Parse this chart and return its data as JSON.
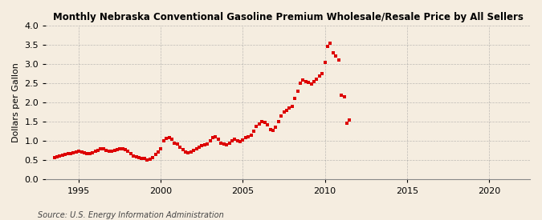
{
  "title": "Monthly Nebraska Conventional Gasoline Premium Wholesale/Resale Price by All Sellers",
  "ylabel": "Dollars per Gallon",
  "source": "Source: U.S. Energy Information Administration",
  "xlim": [
    1993.0,
    2022.5
  ],
  "ylim": [
    0.0,
    4.0
  ],
  "xticks": [
    1995,
    2000,
    2005,
    2010,
    2015,
    2020
  ],
  "yticks": [
    0.0,
    0.5,
    1.0,
    1.5,
    2.0,
    2.5,
    3.0,
    3.5,
    4.0
  ],
  "bg_color": "#f5ede0",
  "grid_color": "#999999",
  "dot_color": "#dd0000",
  "data": [
    [
      1993.5,
      0.58
    ],
    [
      1993.67,
      0.6
    ],
    [
      1993.83,
      0.62
    ],
    [
      1994.0,
      0.63
    ],
    [
      1994.17,
      0.65
    ],
    [
      1994.33,
      0.67
    ],
    [
      1994.5,
      0.68
    ],
    [
      1994.67,
      0.7
    ],
    [
      1994.83,
      0.71
    ],
    [
      1995.0,
      0.73
    ],
    [
      1995.17,
      0.72
    ],
    [
      1995.33,
      0.7
    ],
    [
      1995.5,
      0.68
    ],
    [
      1995.67,
      0.67
    ],
    [
      1995.83,
      0.7
    ],
    [
      1996.0,
      0.73
    ],
    [
      1996.17,
      0.76
    ],
    [
      1996.33,
      0.79
    ],
    [
      1996.5,
      0.8
    ],
    [
      1996.67,
      0.76
    ],
    [
      1996.83,
      0.73
    ],
    [
      1997.0,
      0.73
    ],
    [
      1997.17,
      0.75
    ],
    [
      1997.33,
      0.78
    ],
    [
      1997.5,
      0.8
    ],
    [
      1997.67,
      0.79
    ],
    [
      1997.83,
      0.77
    ],
    [
      1998.0,
      0.73
    ],
    [
      1998.17,
      0.67
    ],
    [
      1998.33,
      0.62
    ],
    [
      1998.5,
      0.6
    ],
    [
      1998.67,
      0.58
    ],
    [
      1998.83,
      0.56
    ],
    [
      1999.0,
      0.54
    ],
    [
      1999.17,
      0.5
    ],
    [
      1999.33,
      0.53
    ],
    [
      1999.5,
      0.58
    ],
    [
      1999.67,
      0.65
    ],
    [
      1999.83,
      0.72
    ],
    [
      2000.0,
      0.8
    ],
    [
      2000.17,
      1.0
    ],
    [
      2000.33,
      1.06
    ],
    [
      2000.5,
      1.08
    ],
    [
      2000.67,
      1.05
    ],
    [
      2000.83,
      0.95
    ],
    [
      2001.0,
      0.92
    ],
    [
      2001.17,
      0.85
    ],
    [
      2001.33,
      0.78
    ],
    [
      2001.5,
      0.72
    ],
    [
      2001.67,
      0.7
    ],
    [
      2001.83,
      0.72
    ],
    [
      2002.0,
      0.75
    ],
    [
      2002.17,
      0.8
    ],
    [
      2002.33,
      0.85
    ],
    [
      2002.5,
      0.88
    ],
    [
      2002.67,
      0.9
    ],
    [
      2002.83,
      0.92
    ],
    [
      2003.0,
      1.0
    ],
    [
      2003.17,
      1.08
    ],
    [
      2003.33,
      1.12
    ],
    [
      2003.5,
      1.05
    ],
    [
      2003.67,
      0.95
    ],
    [
      2003.83,
      0.92
    ],
    [
      2004.0,
      0.9
    ],
    [
      2004.17,
      0.95
    ],
    [
      2004.33,
      1.0
    ],
    [
      2004.5,
      1.05
    ],
    [
      2004.67,
      1.0
    ],
    [
      2004.83,
      0.98
    ],
    [
      2005.0,
      1.02
    ],
    [
      2005.17,
      1.08
    ],
    [
      2005.33,
      1.12
    ],
    [
      2005.5,
      1.15
    ],
    [
      2005.67,
      1.25
    ],
    [
      2005.83,
      1.38
    ],
    [
      2006.0,
      1.45
    ],
    [
      2006.17,
      1.5
    ],
    [
      2006.33,
      1.48
    ],
    [
      2006.5,
      1.42
    ],
    [
      2006.67,
      1.3
    ],
    [
      2006.83,
      1.28
    ],
    [
      2007.0,
      1.35
    ],
    [
      2007.17,
      1.5
    ],
    [
      2007.33,
      1.65
    ],
    [
      2007.5,
      1.75
    ],
    [
      2007.67,
      1.8
    ],
    [
      2007.83,
      1.85
    ],
    [
      2008.0,
      1.9
    ],
    [
      2008.17,
      2.1
    ],
    [
      2008.33,
      2.3
    ],
    [
      2008.5,
      2.5
    ],
    [
      2008.67,
      2.58
    ],
    [
      2008.83,
      2.55
    ],
    [
      2009.0,
      2.52
    ],
    [
      2009.17,
      2.48
    ],
    [
      2009.33,
      2.55
    ],
    [
      2009.5,
      2.6
    ],
    [
      2009.67,
      2.68
    ],
    [
      2009.83,
      2.75
    ],
    [
      2010.0,
      3.05
    ],
    [
      2010.17,
      3.45
    ],
    [
      2010.33,
      3.55
    ],
    [
      2010.5,
      3.3
    ],
    [
      2010.67,
      3.2
    ],
    [
      2010.83,
      3.1
    ],
    [
      2011.0,
      2.2
    ],
    [
      2011.17,
      2.15
    ],
    [
      2011.33,
      1.47
    ],
    [
      2011.5,
      1.55
    ]
  ]
}
